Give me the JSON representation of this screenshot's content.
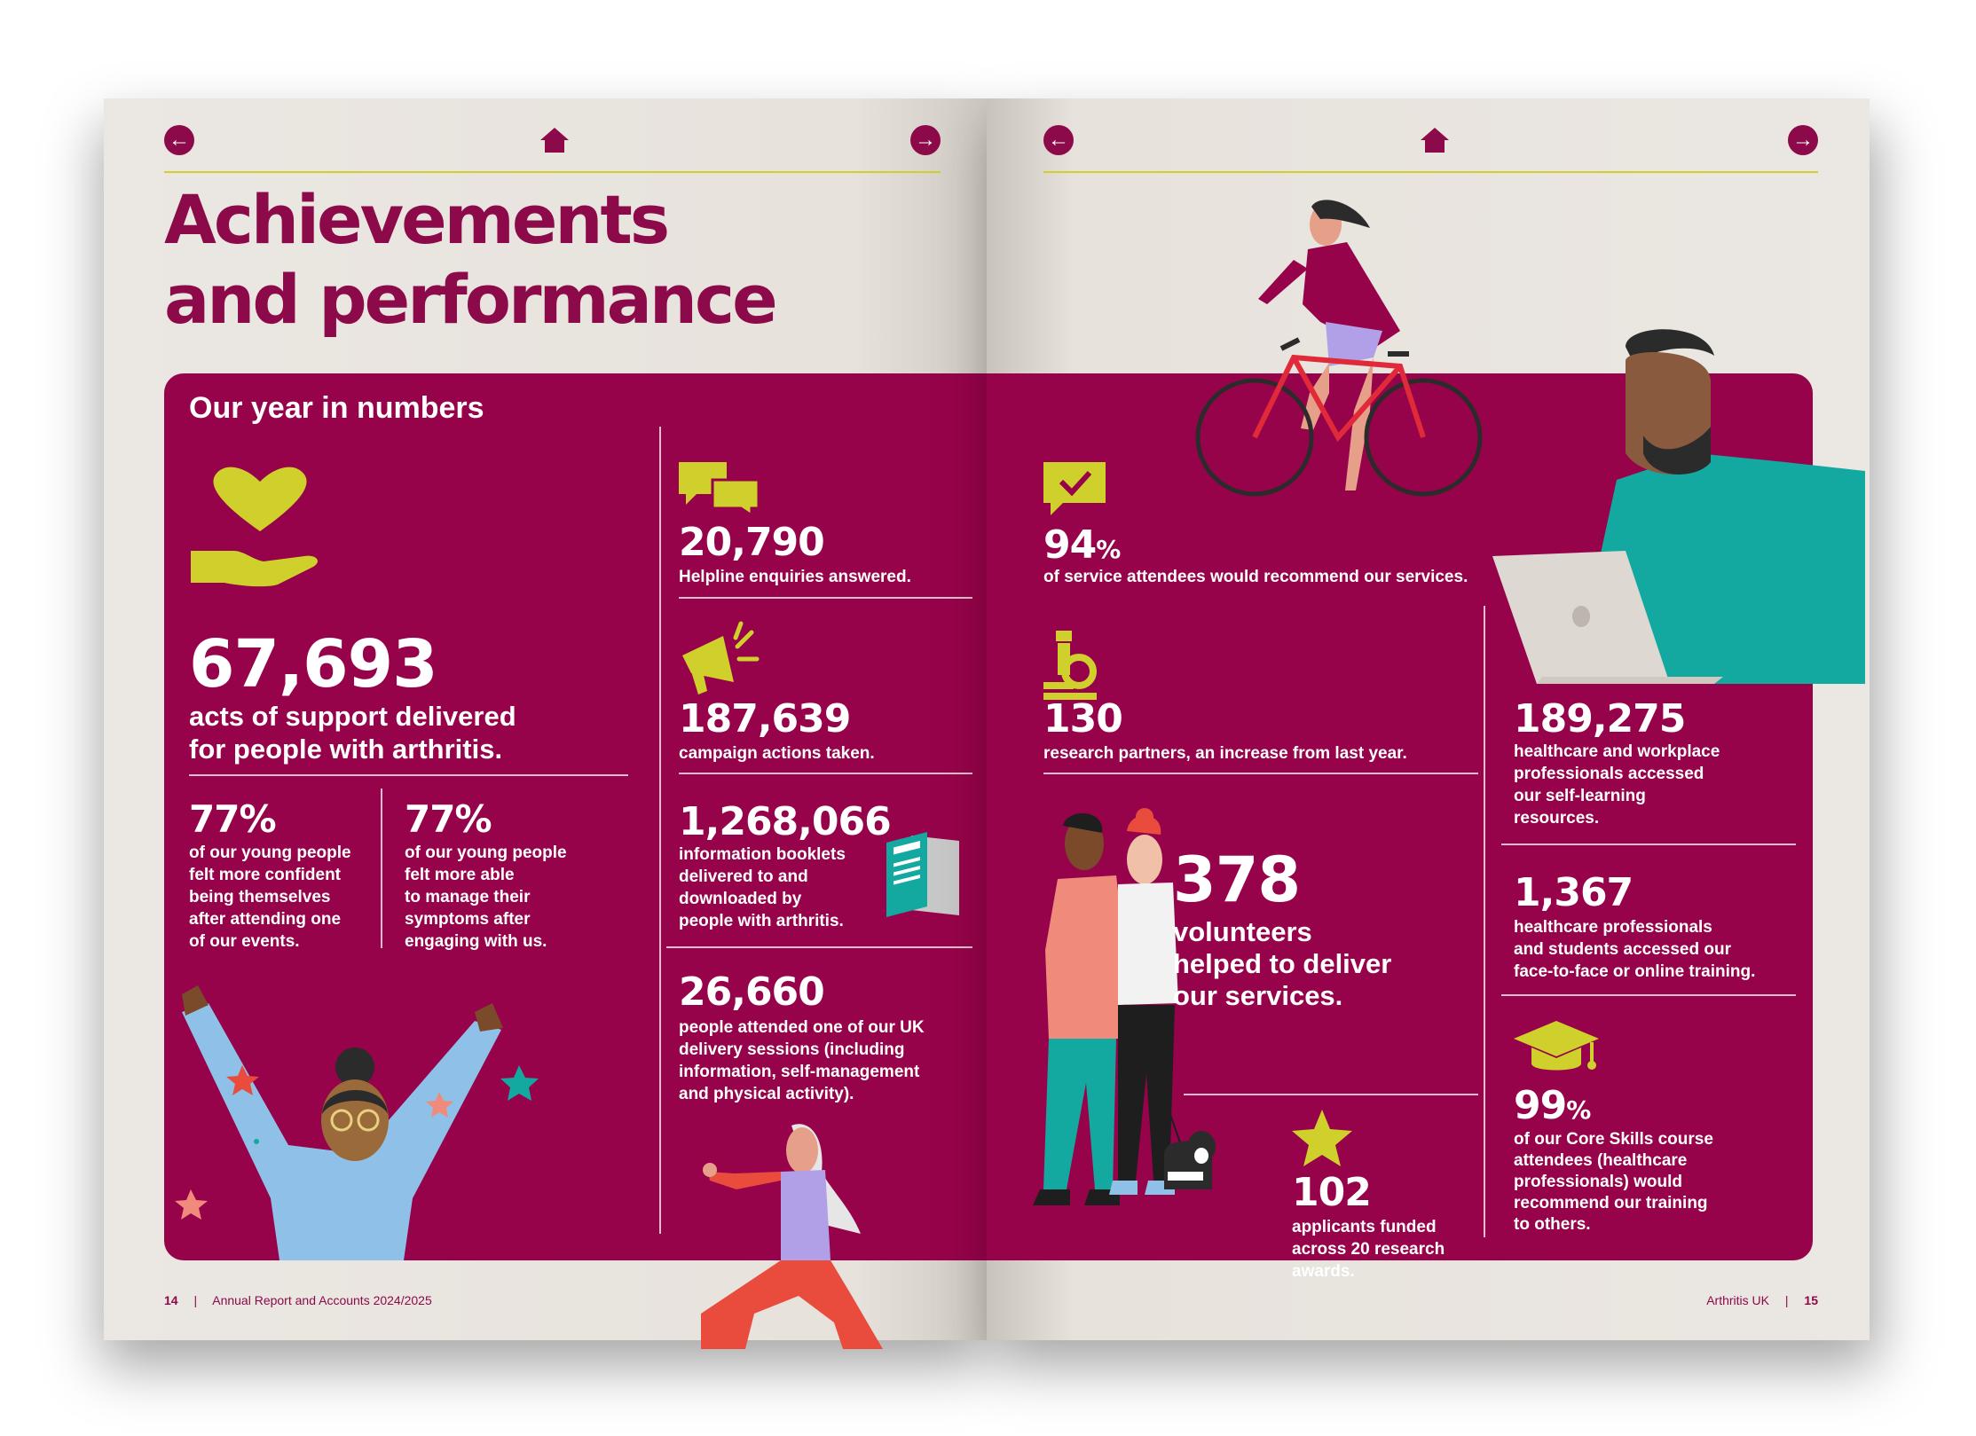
{
  "nav": {
    "back_icon": "arrow-left-icon",
    "home_icon": "home-icon",
    "next_icon": "arrow-right-icon",
    "back_glyph": "←",
    "next_glyph": "→"
  },
  "colors": {
    "brand": "#8c0a4a",
    "panel": "#97034a",
    "accent": "#cfd02c",
    "page": "#e7e2dc"
  },
  "title": {
    "line1": "Achievements",
    "line2": "and performance"
  },
  "section_heading": "Our year in numbers",
  "left": {
    "acts": {
      "value": "67,693",
      "line1": "acts of support delivered",
      "line2": "for people with arthritis."
    },
    "confident": {
      "value": "77%",
      "lines": [
        "of our young people",
        "felt more confident",
        "being themselves",
        "after attending one",
        "of our events."
      ]
    },
    "able": {
      "value": "77%",
      "lines": [
        "of our young people",
        "felt more able",
        "to manage their",
        "symptoms after",
        "engaging with us."
      ]
    },
    "helpline": {
      "value": "20,790",
      "label": "Helpline enquiries answered."
    },
    "campaign": {
      "value": "187,639",
      "label": "campaign actions taken."
    },
    "booklets": {
      "value": "1,268,066",
      "lines": [
        "information booklets",
        "delivered to and",
        "downloaded by",
        "people with arthritis."
      ]
    },
    "sessions": {
      "value": "26,660",
      "lines": [
        "people attended one of our UK",
        "delivery sessions (including",
        "information, self-management",
        "and physical activity)."
      ]
    }
  },
  "right": {
    "recommend": {
      "value": "94",
      "unit": "%",
      "label": "of service attendees would recommend our services."
    },
    "research": {
      "value": "130",
      "label": "research partners, an increase from last year."
    },
    "volunteers": {
      "value": "378",
      "lines": [
        "volunteers",
        "helped to deliver",
        "our services."
      ]
    },
    "applicants": {
      "value": "102",
      "lines": [
        "applicants funded",
        "across 20 research",
        "awards."
      ]
    },
    "selflearning": {
      "value": "189,275",
      "lines": [
        "healthcare and workplace",
        "professionals accessed",
        "our self-learning",
        "resources."
      ]
    },
    "training": {
      "value": "1,367",
      "lines": [
        "healthcare professionals",
        "and students accessed our",
        "face-to-face or online training."
      ]
    },
    "coreskills": {
      "value": "99",
      "unit": "%",
      "lines": [
        "of our Core Skills course",
        "attendees (healthcare",
        "professionals) would",
        "recommend our training",
        "to others."
      ]
    }
  },
  "footer": {
    "left_page": "14",
    "left_sep": "|",
    "left_text": "Annual Report and Accounts 2024/2025",
    "right_text": "Arthritis UK",
    "right_sep": "|",
    "right_page": "15"
  }
}
